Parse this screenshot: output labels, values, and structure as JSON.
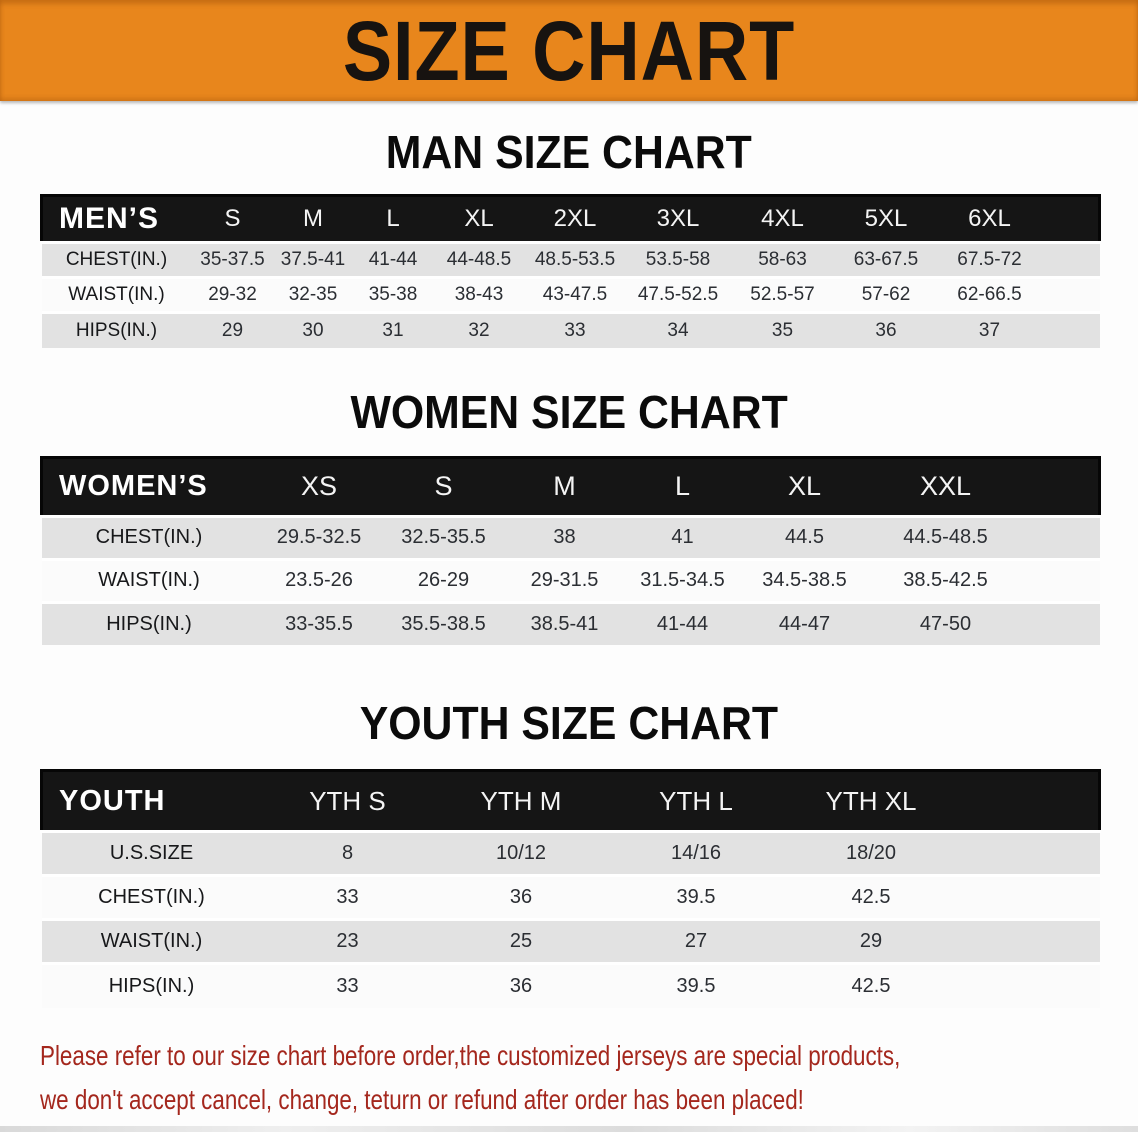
{
  "banner": {
    "title": "SIZE CHART"
  },
  "colors": {
    "banner_orange": "#E8861C",
    "header_black": "#151515",
    "row_gray": "#E2E2E2",
    "footnote_red": "#A4271D"
  },
  "sections": [
    {
      "heading": "MAN SIZE CHART",
      "table": {
        "corner_label": "MEN’S",
        "columns": [
          "S",
          "M",
          "L",
          "XL",
          "2XL",
          "3XL",
          "4XL",
          "5XL",
          "6XL"
        ],
        "rows": [
          {
            "label": "CHEST(IN.)",
            "values": [
              "35-37.5",
              "37.5-41",
              "41-44",
              "44-48.5",
              "48.5-53.5",
              "53.5-58",
              "58-63",
              "63-67.5",
              "67.5-72"
            ]
          },
          {
            "label": "WAIST(IN.)",
            "values": [
              "29-32",
              "32-35",
              "35-38",
              "38-43",
              "43-47.5",
              "47.5-52.5",
              "52.5-57",
              "57-62",
              "62-66.5"
            ]
          },
          {
            "label": "HIPS(IN.)",
            "values": [
              "29",
              "30",
              "31",
              "32",
              "33",
              "34",
              "35",
              "36",
              "37"
            ]
          }
        ]
      }
    },
    {
      "heading": "WOMEN SIZE CHART",
      "table": {
        "corner_label": "WOMEN’S",
        "columns": [
          "XS",
          "S",
          "M",
          "L",
          "XL",
          "XXL"
        ],
        "rows": [
          {
            "label": "CHEST(IN.)",
            "values": [
              "29.5-32.5",
              "32.5-35.5",
              "38",
              "41",
              "44.5",
              "44.5-48.5"
            ]
          },
          {
            "label": "WAIST(IN.)",
            "values": [
              "23.5-26",
              "26-29",
              "29-31.5",
              "31.5-34.5",
              "34.5-38.5",
              "38.5-42.5"
            ]
          },
          {
            "label": "HIPS(IN.)",
            "values": [
              "33-35.5",
              "35.5-38.5",
              "38.5-41",
              "41-44",
              "44-47",
              "47-50"
            ]
          }
        ]
      }
    },
    {
      "heading": "YOUTH SIZE CHART",
      "table": {
        "corner_label": "YOUTH",
        "columns": [
          "YTH S",
          "YTH M",
          "YTH L",
          "YTH XL"
        ],
        "rows": [
          {
            "label": "U.S.SIZE",
            "values": [
              "8",
              "10/12",
              "14/16",
              "18/20"
            ]
          },
          {
            "label": "CHEST(IN.)",
            "values": [
              "33",
              "36",
              "39.5",
              "42.5"
            ]
          },
          {
            "label": "WAIST(IN.)",
            "values": [
              "23",
              "25",
              "27",
              "29"
            ]
          },
          {
            "label": "HIPS(IN.)",
            "values": [
              "33",
              "36",
              "39.5",
              "42.5"
            ]
          }
        ]
      }
    }
  ],
  "footnote": {
    "line1": "Please refer to our size chart before order,the customized jerseys are special products,",
    "line2": "we don't accept cancel, change, teturn or refund after order has been placed!"
  }
}
